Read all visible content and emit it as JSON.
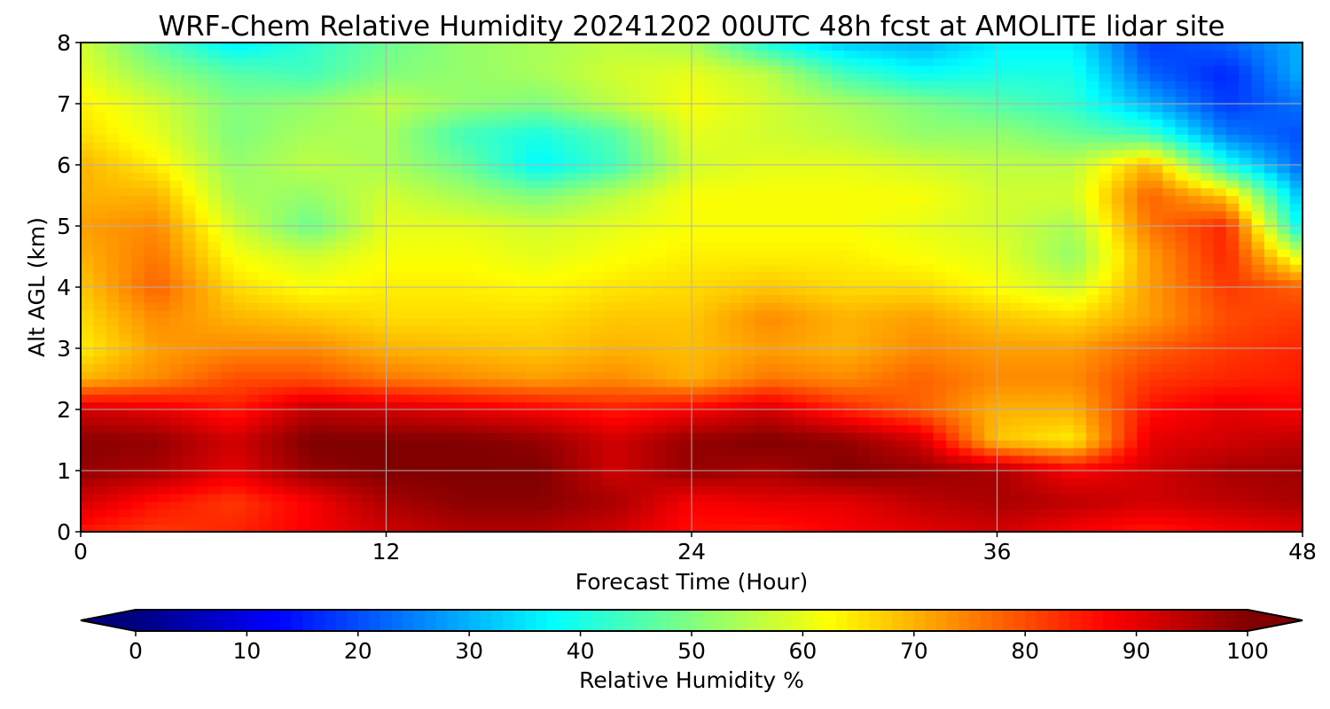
{
  "chart_data": {
    "type": "heatmap",
    "title": "WRF-Chem Relative Humidity 20241202 00UTC 48h fcst at AMOLITE lidar site",
    "xlabel": "Forecast Time (Hour)",
    "ylabel": "Alt AGL (km)",
    "xlim": [
      0,
      48
    ],
    "ylim": [
      0,
      8
    ],
    "x_ticks": [
      "0",
      "12",
      "24",
      "36",
      "48"
    ],
    "y_ticks": [
      "0",
      "1",
      "2",
      "3",
      "4",
      "5",
      "6",
      "7",
      "8"
    ],
    "grid": true,
    "colorbar": {
      "label": "Relative Humidity %",
      "colormap": "jet",
      "range": [
        0,
        100
      ],
      "ticks": [
        "0",
        "10",
        "20",
        "30",
        "40",
        "50",
        "60",
        "70",
        "80",
        "90",
        "100"
      ],
      "extend": "both",
      "under_color": "#00007f",
      "over_color": "#7f0000"
    },
    "x": [
      0,
      3,
      6,
      9,
      12,
      15,
      18,
      21,
      24,
      27,
      30,
      33,
      36,
      39,
      42,
      45,
      48
    ],
    "y": [
      0,
      0.5,
      1,
      1.5,
      2,
      2.5,
      3,
      3.5,
      4,
      4.5,
      5,
      5.5,
      6,
      6.5,
      7,
      7.5,
      8
    ],
    "z": [
      [
        85,
        82,
        84,
        88,
        92,
        95,
        95,
        92,
        86,
        85,
        88,
        90,
        92,
        88,
        85,
        88,
        90
      ],
      [
        92,
        86,
        82,
        88,
        96,
        99,
        99,
        96,
        88,
        90,
        90,
        94,
        96,
        94,
        92,
        94,
        96
      ],
      [
        98,
        96,
        90,
        98,
        100,
        100,
        100,
        92,
        98,
        96,
        100,
        98,
        96,
        88,
        92,
        96,
        97
      ],
      [
        99,
        98,
        92,
        100,
        100,
        100,
        98,
        92,
        98,
        100,
        98,
        92,
        68,
        64,
        90,
        92,
        94
      ],
      [
        92,
        90,
        85,
        94,
        92,
        90,
        88,
        85,
        88,
        92,
        84,
        78,
        70,
        70,
        86,
        90,
        88
      ],
      [
        70,
        74,
        80,
        80,
        76,
        74,
        72,
        74,
        70,
        76,
        74,
        78,
        74,
        74,
        82,
        84,
        85
      ],
      [
        64,
        72,
        74,
        74,
        70,
        69,
        68,
        70,
        69,
        72,
        70,
        74,
        72,
        72,
        78,
        82,
        84
      ],
      [
        66,
        74,
        70,
        68,
        66,
        66,
        66,
        68,
        68,
        74,
        70,
        72,
        68,
        66,
        72,
        80,
        82
      ],
      [
        68,
        78,
        66,
        62,
        64,
        64,
        63,
        65,
        66,
        68,
        66,
        66,
        62,
        58,
        72,
        82,
        78
      ],
      [
        70,
        76,
        62,
        58,
        62,
        62,
        60,
        62,
        64,
        64,
        64,
        62,
        60,
        52,
        72,
        84,
        58
      ],
      [
        72,
        74,
        58,
        48,
        60,
        60,
        58,
        60,
        62,
        62,
        62,
        60,
        58,
        54,
        76,
        84,
        36
      ],
      [
        70,
        70,
        54,
        52,
        58,
        54,
        50,
        56,
        62,
        62,
        62,
        62,
        58,
        58,
        78,
        68,
        30
      ],
      [
        70,
        64,
        52,
        56,
        54,
        48,
        37,
        44,
        58,
        60,
        60,
        58,
        56,
        56,
        70,
        40,
        22
      ],
      [
        66,
        60,
        50,
        54,
        54,
        44,
        40,
        46,
        60,
        58,
        56,
        52,
        52,
        48,
        44,
        25,
        20
      ],
      [
        64,
        58,
        50,
        52,
        56,
        52,
        50,
        56,
        62,
        58,
        54,
        50,
        46,
        42,
        30,
        18,
        24
      ],
      [
        60,
        52,
        46,
        44,
        50,
        52,
        54,
        58,
        60,
        56,
        44,
        38,
        40,
        40,
        22,
        16,
        30
      ],
      [
        58,
        46,
        36,
        42,
        48,
        52,
        54,
        56,
        54,
        40,
        32,
        30,
        36,
        36,
        18,
        22,
        30
      ]
    ]
  }
}
